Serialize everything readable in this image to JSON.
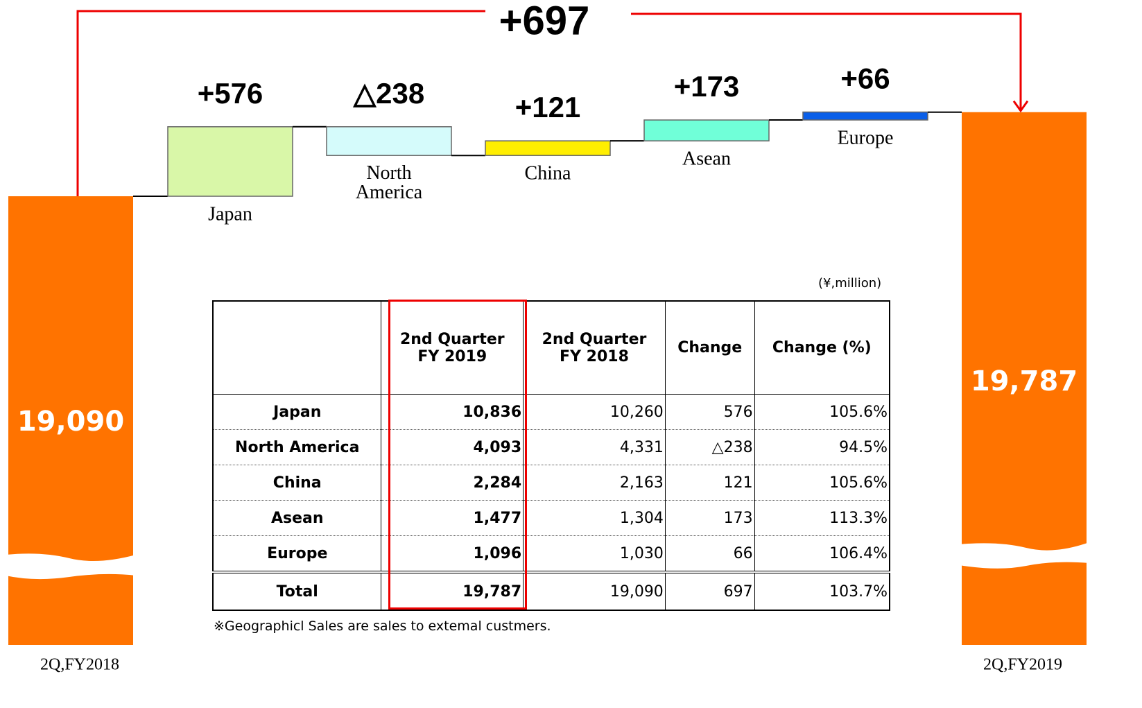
{
  "chart_data": {
    "type": "waterfall",
    "total_change": 697,
    "total_change_label": "+697",
    "start": {
      "label": "2Q,FY2018",
      "value": 19090,
      "value_label": "19,090"
    },
    "end": {
      "label": "2Q,FY2019",
      "value": 19787,
      "value_label": "19,787"
    },
    "categories": [
      "Japan",
      "North\nAmerica",
      "China",
      "Asean",
      "Europe"
    ],
    "values": [
      576,
      -238,
      121,
      173,
      66
    ],
    "value_labels": [
      "+576",
      "△238",
      "+121",
      "+173",
      "+66"
    ],
    "colors": [
      "#d9f7a8",
      "#d5fbfb",
      "#ffee00",
      "#70ffd8",
      "#0a5fe8"
    ],
    "total_color": "#ff7300"
  },
  "table": {
    "unit": "(¥,million)",
    "header": [
      "2nd  Quarter\nFY 2019",
      "2nd  Quarter\nFY 2018",
      "Change",
      "Change  (%)"
    ],
    "rows": [
      [
        "Japan",
        "10,836",
        "10,260",
        "576",
        "105.6%"
      ],
      [
        "North America",
        "4,093",
        "4,331",
        "△238",
        "94.5%"
      ],
      [
        "China",
        "2,284",
        "2,163",
        "121",
        "105.6%"
      ],
      [
        "Asean",
        "1,477",
        "1,304",
        "173",
        "113.3%"
      ],
      [
        "Europe",
        "1,096",
        "1,030",
        "66",
        "106.4%"
      ],
      [
        "Total",
        "19,787",
        "19,090",
        "697",
        "103.7%"
      ]
    ],
    "note": "※Geographicl  Sales  are  sales  to  extemal  custmers."
  }
}
